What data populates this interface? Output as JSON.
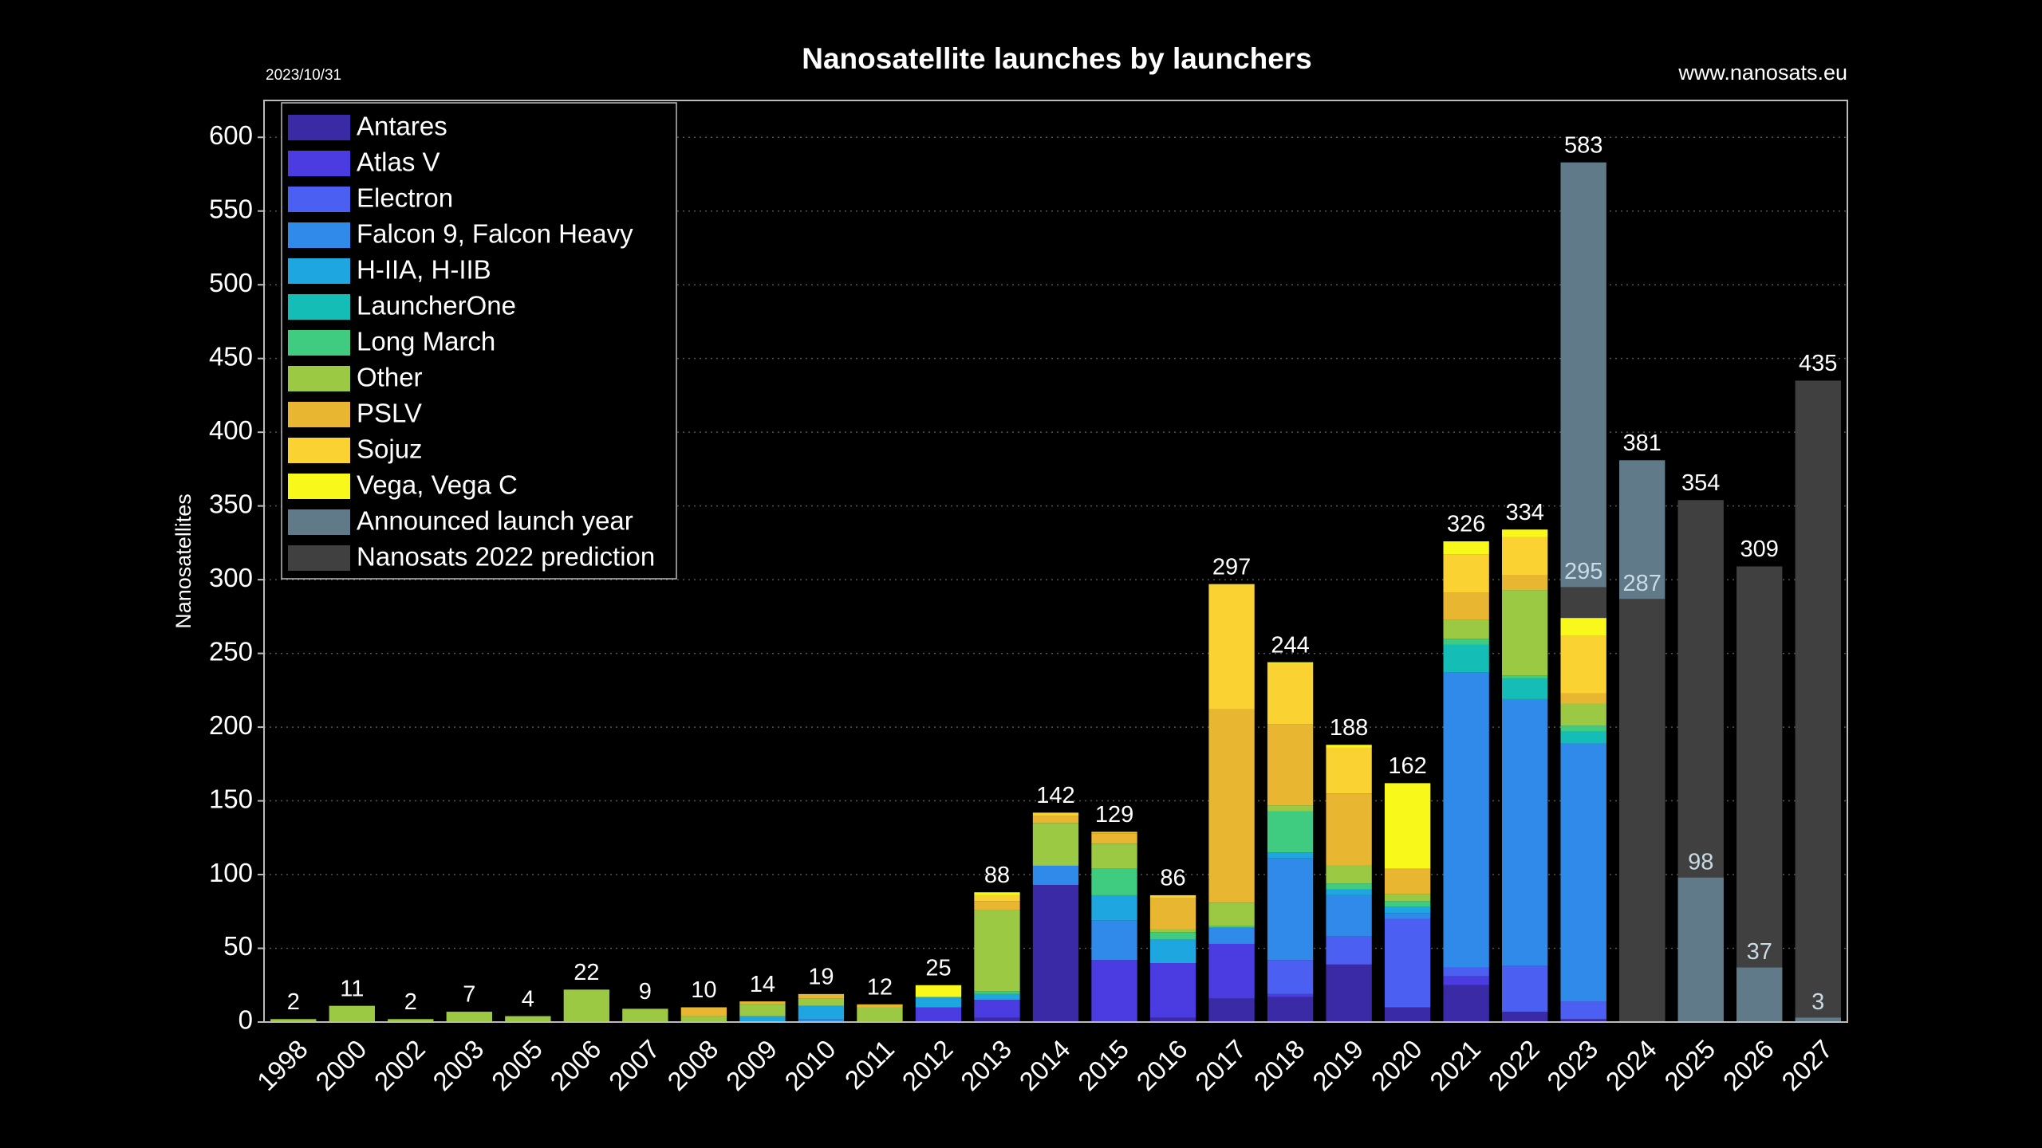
{
  "chart_data": {
    "type": "bar",
    "title": "Nanosatellite launches by launchers",
    "date": "2023/10/31",
    "source": "www.nanosats.eu",
    "ylabel": "Nanosatellites",
    "categories": [
      "1998",
      "2000",
      "2002",
      "2003",
      "2005",
      "2006",
      "2007",
      "2008",
      "2009",
      "2010",
      "2011",
      "2012",
      "2013",
      "2014",
      "2015",
      "2016",
      "2017",
      "2018",
      "2019",
      "2020",
      "2021",
      "2022",
      "2023",
      "2024",
      "2025",
      "2026",
      "2027"
    ],
    "series": [
      {
        "name": "Antares",
        "color": "#3b2aa6",
        "values": [
          0,
          0,
          0,
          0,
          0,
          0,
          0,
          0,
          0,
          0,
          0,
          0,
          3,
          93,
          0,
          3,
          16,
          17,
          39,
          10,
          25,
          7,
          2,
          null,
          null,
          null,
          null
        ]
      },
      {
        "name": "Atlas V",
        "color": "#4a3ce0",
        "values": [
          0,
          0,
          0,
          0,
          0,
          0,
          0,
          0,
          0,
          0,
          0,
          10,
          12,
          0,
          42,
          37,
          37,
          2,
          0,
          0,
          6,
          0,
          0,
          null,
          null,
          null,
          null
        ]
      },
      {
        "name": "Electron",
        "color": "#4b5ff2",
        "values": [
          0,
          0,
          0,
          0,
          0,
          0,
          0,
          0,
          0,
          0,
          0,
          0,
          0,
          0,
          0,
          0,
          0,
          23,
          19,
          60,
          6,
          31,
          12,
          null,
          null,
          null,
          null
        ]
      },
      {
        "name": "Falcon 9, Falcon Heavy",
        "color": "#2f8aea",
        "values": [
          0,
          0,
          0,
          0,
          0,
          0,
          0,
          0,
          0,
          2,
          0,
          0,
          0,
          13,
          27,
          0,
          11,
          69,
          28,
          4,
          200,
          181,
          175,
          null,
          null,
          null,
          null
        ]
      },
      {
        "name": "H-IIA, H-IIB",
        "color": "#1ea6e0",
        "values": [
          0,
          0,
          0,
          0,
          0,
          0,
          0,
          0,
          4,
          9,
          0,
          7,
          4,
          0,
          17,
          16,
          0,
          4,
          4,
          4,
          0,
          0,
          0,
          null,
          null,
          null,
          null
        ]
      },
      {
        "name": "LauncherOne",
        "color": "#14bdb6",
        "values": [
          0,
          0,
          0,
          0,
          0,
          0,
          0,
          0,
          0,
          0,
          0,
          0,
          0,
          0,
          0,
          0,
          0,
          0,
          0,
          0,
          19,
          14,
          8,
          null,
          null,
          null,
          null
        ]
      },
      {
        "name": "Long March",
        "color": "#40cc80",
        "values": [
          0,
          0,
          0,
          0,
          0,
          0,
          0,
          0,
          0,
          0,
          0,
          0,
          2,
          0,
          18,
          5,
          1,
          28,
          4,
          4,
          4,
          2,
          4,
          null,
          null,
          null,
          null
        ]
      },
      {
        "name": "Other",
        "color": "#9cc944",
        "values": [
          2,
          11,
          2,
          7,
          4,
          22,
          9,
          4,
          8,
          5,
          10,
          0,
          55,
          29,
          17,
          2,
          16,
          4,
          12,
          5,
          13,
          58,
          15,
          null,
          null,
          null,
          null
        ]
      },
      {
        "name": "PSLV",
        "color": "#e8b630",
        "values": [
          0,
          0,
          0,
          0,
          0,
          0,
          0,
          6,
          2,
          3,
          2,
          0,
          6,
          5,
          7,
          21,
          131,
          55,
          49,
          17,
          18,
          10,
          7,
          null,
          null,
          null,
          null
        ]
      },
      {
        "name": "Sojuz",
        "color": "#fad332",
        "values": [
          0,
          0,
          0,
          0,
          0,
          0,
          0,
          0,
          0,
          0,
          0,
          0,
          4,
          2,
          1,
          2,
          85,
          41,
          31,
          0,
          26,
          26,
          39,
          null,
          null,
          null,
          null
        ]
      },
      {
        "name": "Vega, Vega C",
        "color": "#f8f81a",
        "values": [
          0,
          0,
          0,
          0,
          0,
          0,
          0,
          0,
          0,
          0,
          0,
          8,
          2,
          0,
          0,
          0,
          0,
          1,
          2,
          58,
          9,
          5,
          12,
          null,
          null,
          null,
          null
        ]
      },
      {
        "name": "Announced launch year",
        "color": "#607a8a",
        "overlay": true,
        "values": [
          null,
          null,
          null,
          null,
          null,
          null,
          null,
          null,
          null,
          null,
          null,
          null,
          null,
          null,
          null,
          null,
          null,
          null,
          null,
          null,
          null,
          null,
          583,
          381,
          98,
          37,
          3
        ]
      },
      {
        "name": "Nanosats 2022 prediction",
        "color": "#404040",
        "overlay": true,
        "values": [
          null,
          null,
          null,
          null,
          null,
          null,
          null,
          null,
          null,
          null,
          null,
          null,
          null,
          null,
          null,
          null,
          null,
          null,
          null,
          null,
          null,
          null,
          295,
          287,
          354,
          309,
          435
        ]
      }
    ],
    "totals": [
      2,
      11,
      2,
      7,
      4,
      22,
      9,
      10,
      14,
      19,
      12,
      25,
      88,
      142,
      129,
      86,
      297,
      244,
      188,
      162,
      326,
      334,
      null,
      null,
      null,
      null,
      null
    ],
    "ylim": [
      0,
      625
    ],
    "yticks": [
      0,
      50,
      100,
      150,
      200,
      250,
      300,
      350,
      400,
      450,
      500,
      550,
      600
    ],
    "grid": true,
    "legend": "upper left"
  }
}
